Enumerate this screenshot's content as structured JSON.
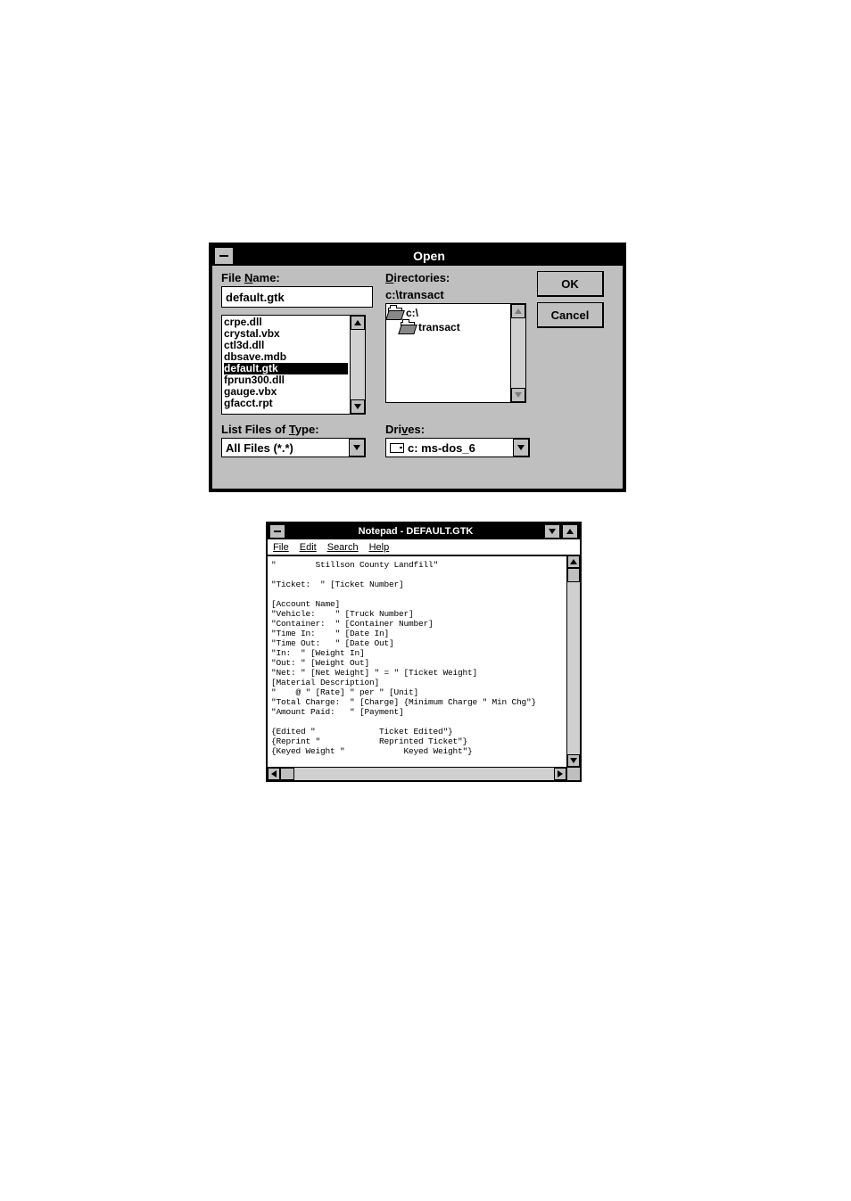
{
  "open_dialog": {
    "title": "Open",
    "file_name_label": "File Name:",
    "file_name_value": "default.gtk",
    "files": [
      "crpe.dll",
      "crystal.vbx",
      "ctl3d.dll",
      "dbsave.mdb",
      "default.gtk",
      "fprun300.dll",
      "gauge.vbx",
      "gfacct.rpt"
    ],
    "selected_file_index": 4,
    "directories_label": "Directories:",
    "current_dir": "c:\\transact",
    "dir_tree": [
      {
        "label": "c:\\",
        "icon": "open",
        "indent": 0
      },
      {
        "label": "transact",
        "icon": "open",
        "indent": 1
      }
    ],
    "list_files_label": "List Files of Type:",
    "file_type_value": "All Files (*.*)",
    "drives_label": "Drives:",
    "drive_value": "c: ms-dos_6",
    "ok_label": "OK",
    "cancel_label": "Cancel"
  },
  "notepad": {
    "title": "Notepad - DEFAULT.GTK",
    "menu": [
      "File",
      "Edit",
      "Search",
      "Help"
    ],
    "text": "\"        Stillson County Landfill\"\n\n\"Ticket:  \" [Ticket Number]\n\n[Account Name]\n\"Vehicle:    \" [Truck Number]\n\"Container:  \" [Container Number]\n\"Time In:    \" [Date In]\n\"Time Out:   \" [Date Out]\n\"In:  \" [Weight In]\n\"Out: \" [Weight Out]\n\"Net: \" [Net Weight] \" = \" [Ticket Weight]\n[Material Description]\n\"    @ \" [Rate] \" per \" [Unit]\n\"Total Charge:  \" [Charge] {Minimum Charge \" Min Chg\"}\n\"Amount Paid:   \" [Payment]\n\n{Edited \"             Ticket Edited\"}\n{Reprint \"            Reprinted Ticket\"}\n{Keyed Weight \"            Keyed Weight\"}"
  },
  "colors": {
    "dialog_bg": "#bfbfbf",
    "titlebar_bg": "#000000",
    "titlebar_fg": "#ffffff",
    "field_bg": "#ffffff",
    "text": "#000000"
  }
}
